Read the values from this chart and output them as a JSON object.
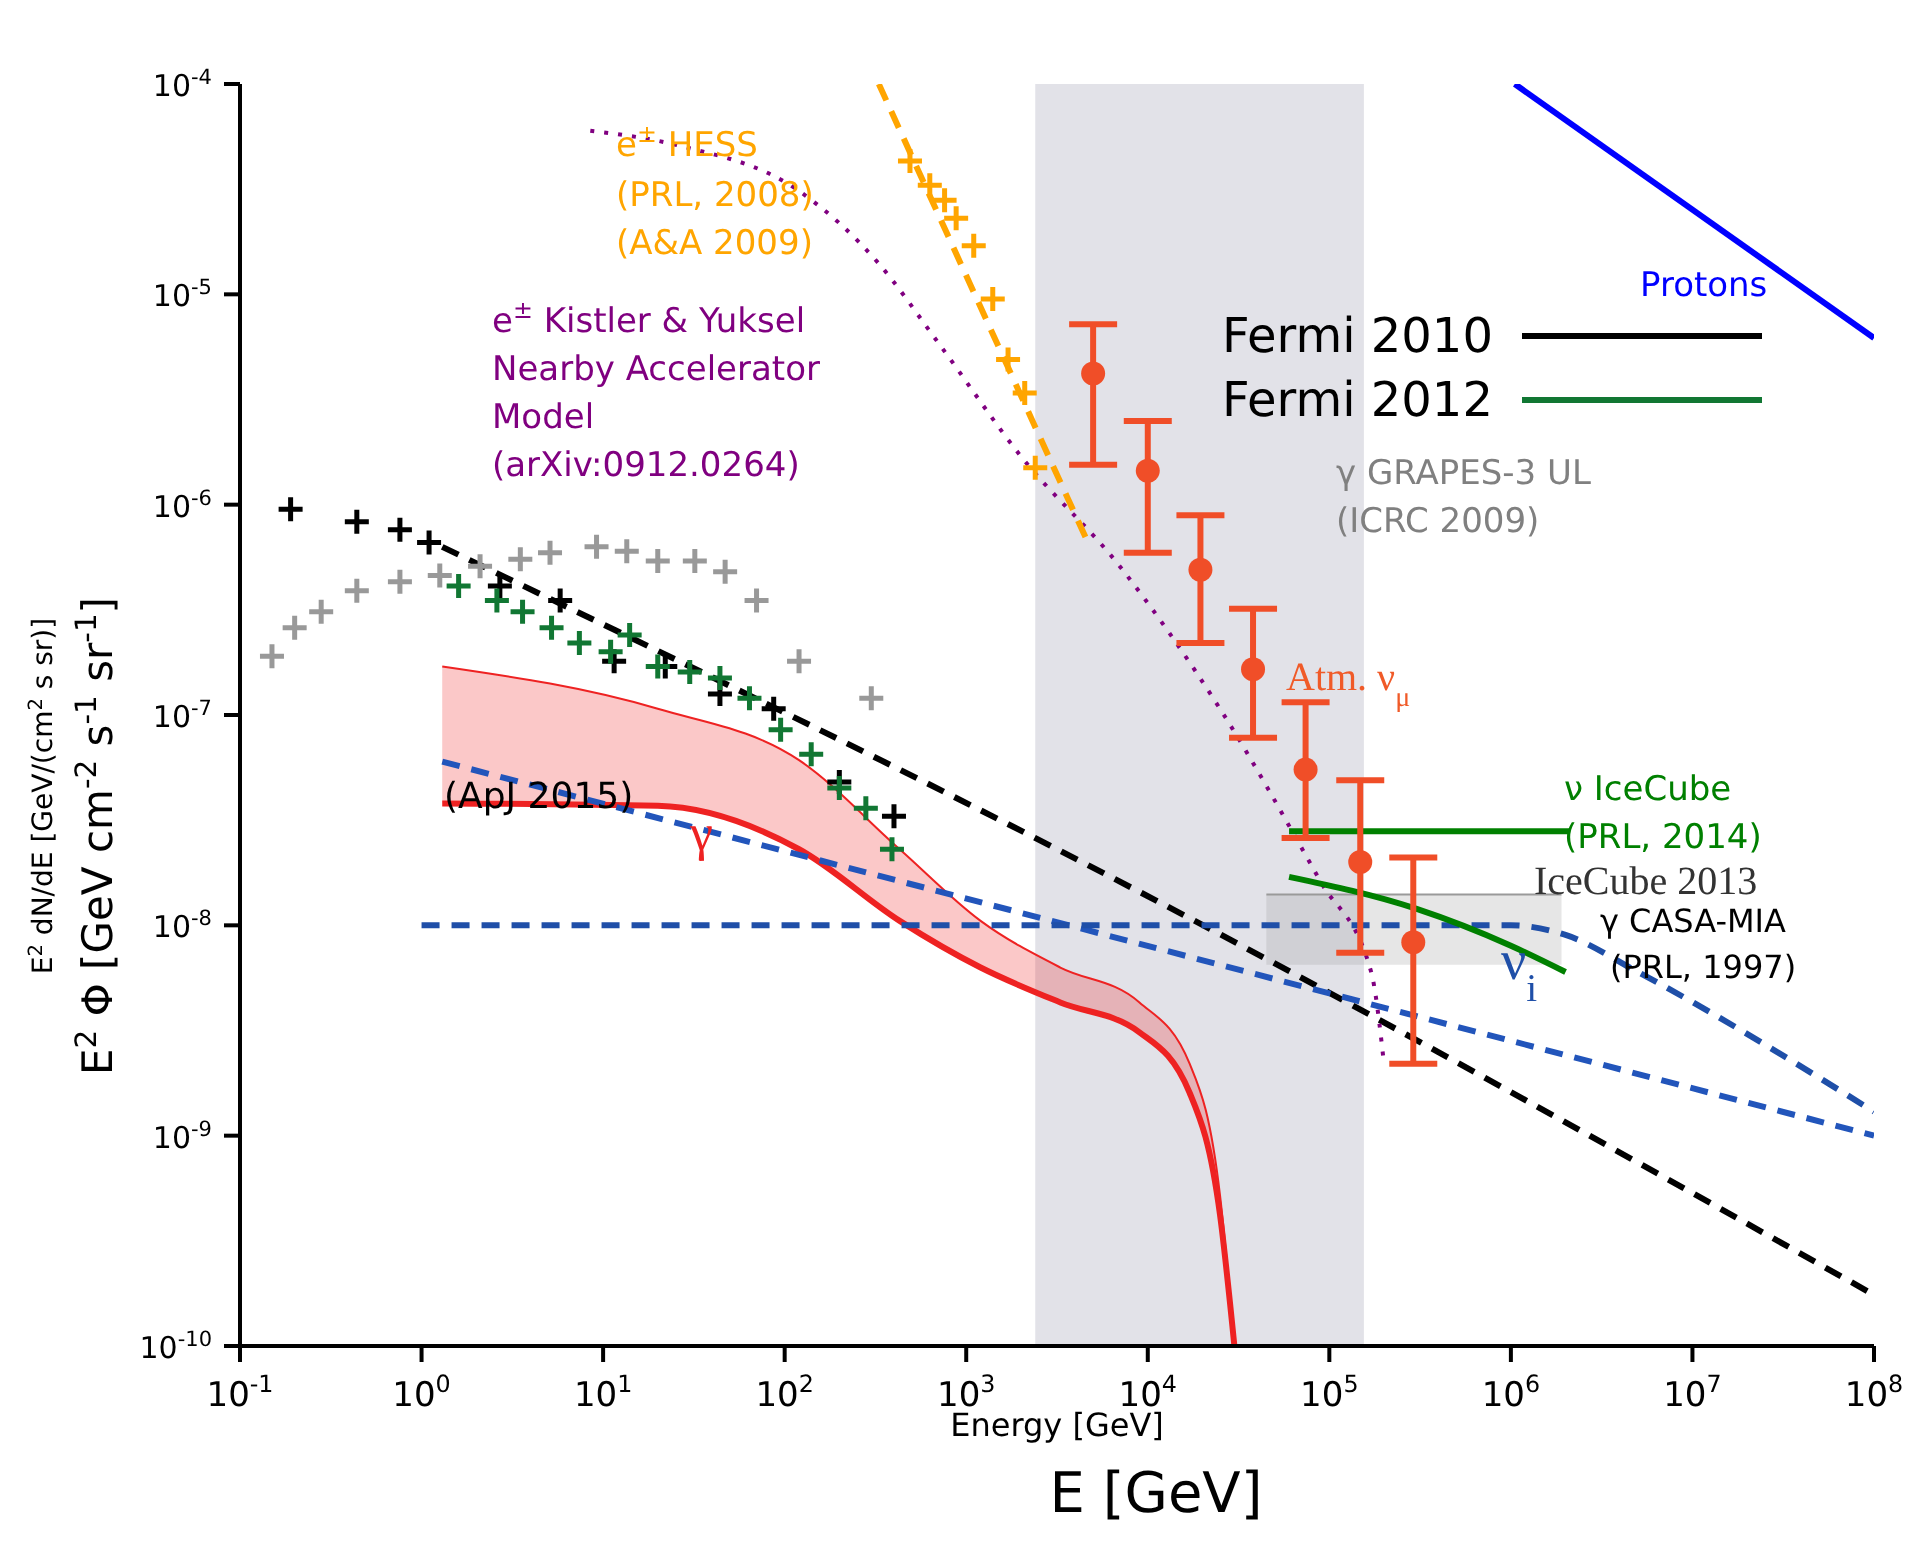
{
  "chart_data": {
    "type": "line",
    "xlabel": "Energy [GeV]",
    "ylabel": "E$^{2}$ dN/dE  [GeV/(cm$^{2}$ s sr)]",
    "log": "xy",
    "grid": false,
    "legend": "top right",
    "xlim": [
      0.1,
      100000000
    ],
    "ylim": [
      1e-10,
      0.0001
    ],
    "xticks": [
      {
        "value": 0.1,
        "label": "10$^{-1}$"
      },
      {
        "value": 1,
        "label": "10$^{0}$"
      },
      {
        "value": 10,
        "label": "10$^{1}$"
      },
      {
        "value": 100,
        "label": "10$^{2}$"
      },
      {
        "value": 1000,
        "label": "10$^{3}$"
      },
      {
        "value": 10000,
        "label": "10$^{4}$"
      },
      {
        "value": 100000,
        "label": "10$^{5}$"
      },
      {
        "value": 1000000,
        "label": "10$^{6}$"
      },
      {
        "value": 10000000,
        "label": "10$^{7}$"
      },
      {
        "value": 100000000,
        "label": "10$^{8}$"
      }
    ],
    "yticks": [
      {
        "value": 1e-10,
        "label": "10$^{-10}$"
      },
      {
        "value": 1e-09,
        "label": "10$^{-9}$"
      },
      {
        "value": 1e-08,
        "label": "10$^{-8}$"
      },
      {
        "value": 1e-07,
        "label": "10$^{-7}$"
      },
      {
        "value": 1e-06,
        "label": "10$^{-6}$"
      },
      {
        "value": 1e-05,
        "label": "10$^{-5}$"
      },
      {
        "value": 0.0001,
        "label": "10$^{-4}$"
      }
    ],
    "bands": [
      {
        "axis": "x",
        "from": 2400,
        "to": 155000,
        "color": "#e2e2e8"
      }
    ],
    "series": [
      {
        "type": "line",
        "color": "#9a9a9a",
        "x": [
          45000,
          1900000
        ],
        "values": [
          1.4e-08,
          1.4e-08
        ],
        "lower": [
          6.5e-09,
          6.5e-09
        ],
        "upper": [
          1.4e-08,
          1.4e-08
        ]
      },
      {
        "type": "line",
        "color": "#ee2222",
        "x": [
          1.3,
          20,
          120,
          430,
          1200,
          3300,
          9000,
          17000,
          25000,
          30000
        ],
        "values": [
          3.8e-08,
          3.7e-08,
          2.3e-08,
          1.05e-08,
          6.3e-09,
          4.3e-09,
          3.1e-09,
          1.6e-09,
          4.2e-10,
          1e-10
        ]
      },
      {
        "color": "#ee2222",
        "x": [
          1.3,
          20,
          120,
          430,
          1200,
          3300,
          9000,
          17000,
          25000,
          30000
        ],
        "values": [
          1.7e-07,
          1.07e-07,
          6.1e-08,
          2.3e-08,
          1.05e-08,
          6.3e-09,
          4.3e-09,
          2.2e-09,
          5.2e-10,
          1e-10
        ],
        "lower": [
          3.8e-08,
          3.7e-08,
          2.3e-08,
          1.05e-08,
          6.3e-09,
          4.3e-09,
          3.1e-09,
          1.6e-09,
          4.2e-10,
          1e-10
        ],
        "upper": [
          1.7e-07,
          1.07e-07,
          6.1e-08,
          2.3e-08,
          1.05e-08,
          6.3e-09,
          4.3e-09,
          2.2e-09,
          5.2e-10,
          1e-10
        ]
      },
      {
        "type": "line",
        "color": "#000000",
        "line_style": "dashed",
        "x": [
          1.3,
          5500,
          100000000
        ],
        "values": [
          6.3e-07,
          1.8e-08,
          1.75e-10
        ]
      },
      {
        "type": "line",
        "color": "#2255bb",
        "line_style": "dashed",
        "x": [
          1.3,
          100000000
        ],
        "values": [
          6e-08,
          1e-09
        ]
      },
      {
        "type": "line",
        "name": "ν$_{i}$",
        "color": "#1f4fa8",
        "line_style": "dashed",
        "x": [
          1,
          1000000,
          2000000,
          5000000,
          100000000
        ],
        "values": [
          1e-08,
          1e-08,
          9e-09,
          6e-09,
          1.3e-09
        ]
      },
      {
        "type": "line",
        "color": "#0000ff",
        "x": [
          1050000,
          100000000
        ],
        "values": [
          0.0001,
          6.2e-06
        ]
      },
      {
        "type": "line",
        "color": "#800080",
        "line_style": "dotted",
        "x": [
          8.5,
          26,
          120,
          330,
          700,
          2000,
          7000,
          25000,
          90000,
          170000,
          200000
        ],
        "values": [
          6e-05,
          5.1e-05,
          3.1e-05,
          1.4e-05,
          5.9e-06,
          1.7e-06,
          5.1e-07,
          1.07e-07,
          1.6e-08,
          6e-09,
          2.2e-09
        ]
      },
      {
        "type": "line",
        "color": "#ffa500",
        "line_style": "dashed",
        "x": [
          330,
          4800
        ],
        "values": [
          0.0001,
          6.3e-07
        ]
      },
      {
        "type": "scatter",
        "color": "#ffa500",
        "marker": "cross",
        "x": [
          490,
          630,
          760,
          880,
          1100,
          1400,
          1700,
          2100,
          2400
        ],
        "values": [
          4.3e-05,
          3.3e-05,
          2.8e-05,
          2.3e-05,
          1.7e-05,
          9.5e-06,
          4.9e-06,
          3.4e-06,
          1.5e-06
        ]
      },
      {
        "type": "line",
        "color": "#008000",
        "x": [
          60000,
          2100000
        ],
        "values": [
          2.8e-08,
          2.8e-08
        ]
      },
      {
        "type": "line",
        "color": "#008000",
        "x": [
          60000,
          300000,
          1000000,
          2000000
        ],
        "values": [
          1.7e-08,
          1.2e-08,
          8e-09,
          6e-09
        ]
      },
      {
        "type": "scatter",
        "color": "#999999",
        "marker": "cross",
        "x": [
          0.15,
          0.2,
          0.28,
          0.44,
          0.76,
          1.26,
          2.1,
          3.5,
          5.1,
          9.2,
          13.5,
          20,
          32,
          47,
          70,
          120,
          300
        ],
        "values": [
          1.9e-07,
          2.6e-07,
          3.1e-07,
          3.9e-07,
          4.3e-07,
          4.6e-07,
          5.1e-07,
          5.5e-07,
          5.9e-07,
          6.3e-07,
          6e-07,
          5.4e-07,
          5.4e-07,
          4.8e-07,
          3.5e-07,
          1.8e-07,
          1.2e-07
        ]
      },
      {
        "type": "scatter",
        "name": "Fermi 2010",
        "color": "#000000",
        "marker": "cross",
        "x": [
          0.19,
          0.44,
          0.76,
          1.1,
          2.7,
          5.8,
          11.5,
          22,
          44,
          87,
          200,
          400
        ],
        "values": [
          9.5e-07,
          8.3e-07,
          7.6e-07,
          6.6e-07,
          4.1e-07,
          3.5e-07,
          1.8e-07,
          1.7e-07,
          1.26e-07,
          1.07e-07,
          4.8e-08,
          3.3e-08
        ]
      },
      {
        "type": "scatter",
        "name": "Fermi 2012",
        "color": "#117733",
        "marker": "cross",
        "x": [
          1.6,
          2.6,
          3.6,
          5.2,
          7.4,
          11,
          14,
          20,
          30,
          44,
          64,
          95,
          140,
          200,
          280,
          390
        ],
        "values": [
          4.1e-07,
          3.5e-07,
          3.1e-07,
          2.6e-07,
          2.2e-07,
          2e-07,
          2.4e-07,
          1.7e-07,
          1.6e-07,
          1.5e-07,
          1.2e-07,
          8.5e-08,
          6.5e-08,
          4.5e-08,
          3.6e-08,
          2.3e-08
        ]
      },
      {
        "type": "scatter",
        "color": "#f04e28",
        "marker": "circle",
        "x": [
          5000,
          10000,
          19500,
          38000,
          74000,
          148000,
          290000
        ],
        "values": [
          4.2e-06,
          1.45e-06,
          4.9e-07,
          1.65e-07,
          5.5e-08,
          2e-08,
          8.3e-09
        ],
        "errors": [
          [
            1.55e-06,
            7.2e-06
          ],
          [
            5.9e-07,
            2.5e-06
          ],
          [
            2.2e-07,
            8.9e-07
          ],
          [
            7.8e-08,
            3.2e-07
          ],
          [
            2.6e-08,
            1.15e-07
          ],
          [
            7.4e-09,
            4.9e-08
          ],
          [
            2.2e-09,
            2.1e-08
          ]
        ]
      }
    ],
    "annotations": [
      "e$^{±}$ HESS",
      "(PRL, 2008)",
      "(A&A 2009)",
      "e$^{±}$ Kistler & Yuksel",
      "Nearby Accelerator",
      "Model",
      "(arXiv:0912.0264)",
      "Protons",
      "γ GRAPES-3 UL",
      "(ICRC 2009)",
      "Atm. ν$_{μ}$",
      "ν IceCube",
      "(PRL, 2014)",
      "IceCube 2013",
      "γ CASA-MIA",
      "(PRL, 1997)",
      "γ",
      "(ApJ 2015)",
      "E [GeV]",
      "E$^{2}$ Φ [GeV cm$^{-2}$ s$^{-1}$ sr$^{-1}$]"
    ]
  }
}
